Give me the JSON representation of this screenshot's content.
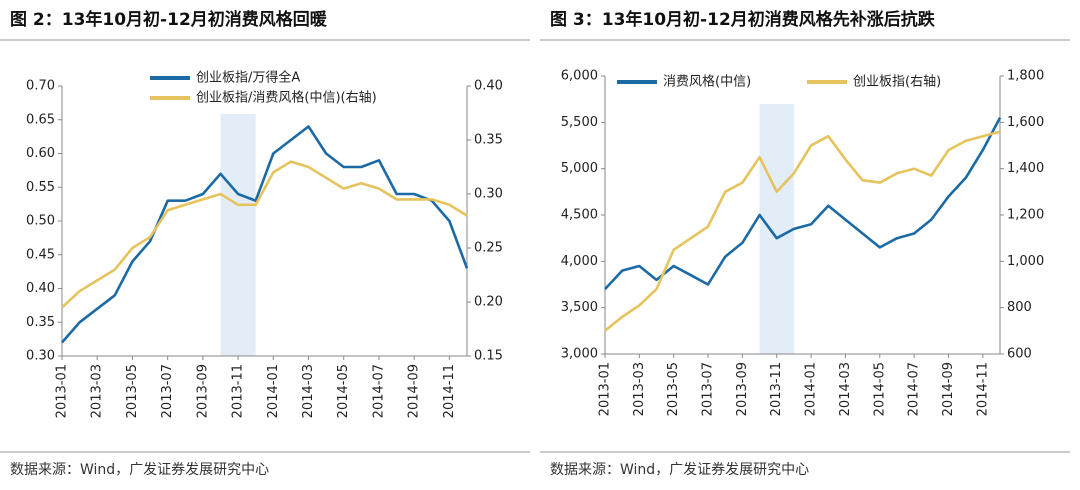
{
  "chart_data": [
    {
      "type": "line",
      "title": "图 2：13年10月初-12月初消费风格回暖",
      "source": "数据来源：Wind，广发证券发展研究中心",
      "x": [
        "2013-01",
        "2013-02",
        "2013-03",
        "2013-04",
        "2013-05",
        "2013-06",
        "2013-07",
        "2013-08",
        "2013-09",
        "2013-10",
        "2013-11",
        "2013-12",
        "2014-01",
        "2014-02",
        "2014-03",
        "2014-04",
        "2014-05",
        "2014-06",
        "2014-07",
        "2014-08",
        "2014-09",
        "2014-10",
        "2014-11",
        "2014-12"
      ],
      "xticks": [
        "2013-01",
        "2013-03",
        "2013-05",
        "2013-07",
        "2013-09",
        "2013-11",
        "2014-01",
        "2014-03",
        "2014-05",
        "2014-07",
        "2014-09",
        "2014-11"
      ],
      "highlight": [
        "2013-10",
        "2013-11"
      ],
      "legend": "top",
      "ylim": [
        0.3,
        0.7
      ],
      "yticks": [
        {
          "value": 0.3,
          "label": "0.30"
        },
        0.35,
        {
          "value": 0.4,
          "label": "0.40"
        },
        0.45,
        {
          "value": 0.5,
          "label": "0.50"
        },
        0.55,
        {
          "value": 0.6,
          "label": "0.60"
        },
        0.65,
        {
          "value": 0.7,
          "label": "0.70"
        }
      ],
      "y2lim": [
        0.15,
        0.4
      ],
      "y2ticks": [
        0.15,
        {
          "value": 0.2,
          "label": "0.20"
        },
        0.25,
        {
          "value": 0.3,
          "label": "0.30"
        },
        0.35,
        {
          "value": 0.4,
          "label": "0.40"
        }
      ],
      "series": [
        {
          "name": "创业板指/万得全A",
          "color": "#1b6aa5",
          "axis": "y",
          "values": [
            0.32,
            0.35,
            0.37,
            0.39,
            0.44,
            0.47,
            0.53,
            0.53,
            0.54,
            0.57,
            0.54,
            0.53,
            0.6,
            0.62,
            0.64,
            0.6,
            0.58,
            0.58,
            0.59,
            0.54,
            0.54,
            0.53,
            0.5,
            0.43
          ]
        },
        {
          "name": "创业板指/消费风格(中信)(右轴)",
          "color": "#e6c35c",
          "axis": "y2",
          "values": [
            0.195,
            0.21,
            0.22,
            0.23,
            0.25,
            0.26,
            0.285,
            0.29,
            0.295,
            0.3,
            0.29,
            0.29,
            0.32,
            0.33,
            0.325,
            0.315,
            0.305,
            0.31,
            0.305,
            0.295,
            0.295,
            0.295,
            0.29,
            0.28
          ]
        }
      ]
    },
    {
      "type": "line",
      "title": "图 3：13年10月初-12月初消费风格先补涨后抗跌",
      "source": "数据来源：Wind，广发证券发展研究中心",
      "x": [
        "2013-01",
        "2013-02",
        "2013-03",
        "2013-04",
        "2013-05",
        "2013-06",
        "2013-07",
        "2013-08",
        "2013-09",
        "2013-10",
        "2013-11",
        "2013-12",
        "2014-01",
        "2014-02",
        "2014-03",
        "2014-04",
        "2014-05",
        "2014-06",
        "2014-07",
        "2014-08",
        "2014-09",
        "2014-10",
        "2014-11",
        "2014-12"
      ],
      "xticks": [
        "2013-01",
        "2013-03",
        "2013-05",
        "2013-07",
        "2013-09",
        "2013-11",
        "2014-01",
        "2014-03",
        "2014-05",
        "2014-07",
        "2014-09",
        "2014-11"
      ],
      "highlight": [
        "2013-10",
        "2013-11"
      ],
      "legend": "top-left",
      "ylim": [
        3000,
        6000
      ],
      "yticks": [
        {
          "value": 3000,
          "label": "3,000"
        },
        {
          "value": 3500,
          "label": "3,500"
        },
        {
          "value": 4000,
          "label": "4,000"
        },
        {
          "value": 4500,
          "label": "4,500"
        },
        {
          "value": 5000,
          "label": "5,000"
        },
        {
          "value": 5500,
          "label": "5,500"
        },
        {
          "value": 6000,
          "label": "6,000"
        }
      ],
      "y2lim": [
        600,
        1800
      ],
      "y2ticks": [
        600,
        800,
        {
          "value": 1000,
          "label": "1,000"
        },
        {
          "value": 1200,
          "label": "1,200"
        },
        {
          "value": 1400,
          "label": "1,400"
        },
        {
          "value": 1600,
          "label": "1,600"
        },
        {
          "value": 1800,
          "label": "1,800"
        }
      ],
      "series": [
        {
          "name": "消费风格(中信)",
          "color": "#1b6aa5",
          "axis": "y",
          "values": [
            3700,
            3900,
            3950,
            3800,
            3950,
            3850,
            3750,
            4050,
            4200,
            4500,
            4250,
            4350,
            4400,
            4600,
            4450,
            4300,
            4150,
            4250,
            4300,
            4450,
            4700,
            4900,
            5200,
            5550
          ]
        },
        {
          "name": "创业板指(右轴)",
          "color": "#e6c35c",
          "axis": "y2",
          "values": [
            700,
            760,
            810,
            880,
            1050,
            1100,
            1150,
            1300,
            1340,
            1450,
            1300,
            1380,
            1500,
            1540,
            1440,
            1350,
            1340,
            1380,
            1400,
            1370,
            1480,
            1520,
            1540,
            1560
          ]
        }
      ]
    }
  ]
}
